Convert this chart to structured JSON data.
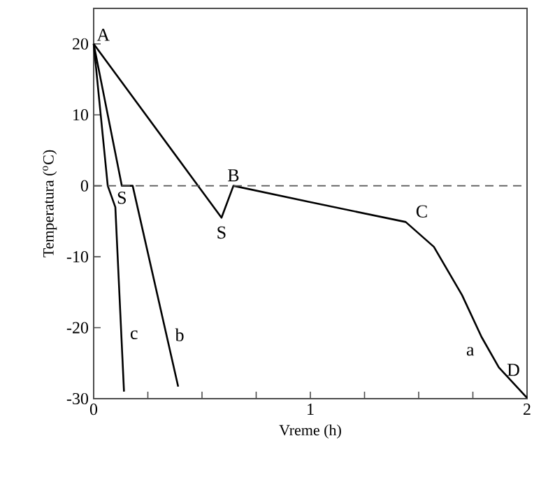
{
  "chart_data": {
    "type": "line",
    "xlabel": "Vreme (h)",
    "ylabel": "Temperatura ($^{o}$C)",
    "xlim": [
      0,
      2
    ],
    "ylim": [
      -30,
      25
    ],
    "xticks": [
      0,
      {
        "value": 0.25,
        "label": null
      },
      {
        "value": 0.5,
        "label": null
      },
      {
        "value": 0.75,
        "label": null
      },
      1,
      {
        "value": 1.25,
        "label": null
      },
      {
        "value": 1.5,
        "label": null
      },
      {
        "value": 1.75,
        "label": null
      },
      2
    ],
    "yticks": [
      -30,
      -20,
      -10,
      0,
      10,
      20
    ],
    "grid": false,
    "marker": "none",
    "series": [
      {
        "color": "#000000",
        "x": [
          0,
          0.59,
          0.645,
          1.0,
          1.44,
          1.57,
          1.7,
          1.79,
          1.87,
          2.0
        ],
        "values": [
          20,
          -4.5,
          0,
          -2.3,
          -5.1,
          -8.6,
          -15.4,
          -21.3,
          -25.6,
          -29.9
        ]
      },
      {
        "color": "#000000",
        "x": [
          0,
          0.13,
          0.18,
          0.39
        ],
        "values": [
          20,
          0,
          0,
          -28.3
        ]
      },
      {
        "color": "#000000",
        "x": [
          0,
          0.065,
          0.1,
          0.14
        ],
        "values": [
          20,
          0,
          -3,
          -29
        ]
      }
    ],
    "ref_lines": [
      {
        "axis": "y",
        "value": 0,
        "color": "#555555",
        "line_style": "dashed"
      }
    ],
    "annotations": [
      {
        "text": "A",
        "x": 0,
        "y": 20
      },
      {
        "text": "S",
        "x": 0.13,
        "y": 0
      },
      {
        "text": "S",
        "x": 0.59,
        "y": -4.5
      },
      {
        "text": "B",
        "x": 0.645,
        "y": 0
      },
      {
        "text": "C",
        "x": 1.44,
        "y": -5.1
      },
      {
        "text": "a",
        "x": 1.79,
        "y": -21.3
      },
      {
        "text": "D",
        "x": 1.95,
        "y": -28.2
      },
      {
        "text": "c",
        "x": 0.1277,
        "y": -21
      },
      {
        "text": "b",
        "x": 0.336,
        "y": -21
      }
    ]
  }
}
